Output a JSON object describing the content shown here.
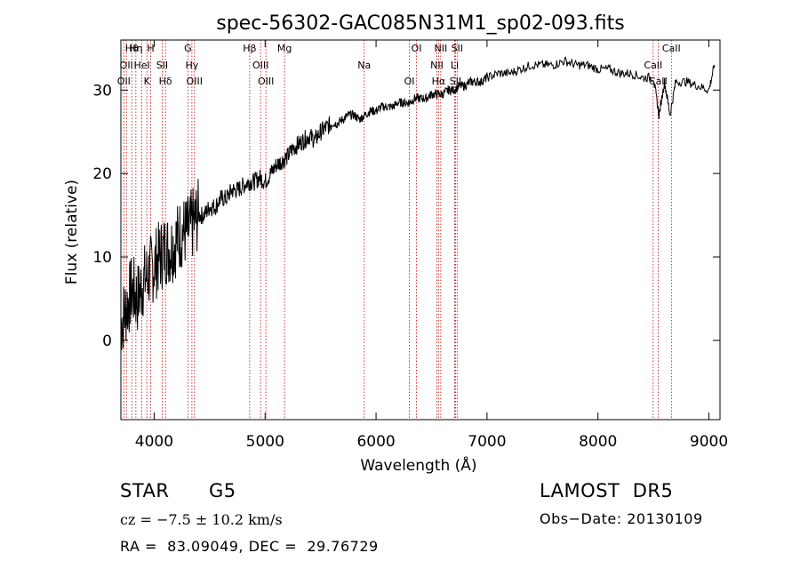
{
  "chart_data": {
    "type": "line",
    "title": "spec-56302-GAC085N31M1_sp02-093.fits",
    "xlabel": "Wavelength (Å)",
    "ylabel": "Flux (relative)",
    "xlim": [
      3700,
      9100
    ],
    "ylim": [
      -9.5,
      36
    ],
    "xticks": [
      4000,
      5000,
      6000,
      7000,
      8000,
      9000
    ],
    "yticks": [
      0,
      10,
      20,
      30
    ],
    "x_tick_labels": [
      "4000",
      "5000",
      "6000",
      "7000",
      "8000",
      "9000"
    ],
    "y_tick_labels": [
      "0",
      "10",
      "20",
      "30"
    ],
    "grid": false,
    "line_color": "#000000",
    "marker_color": "#cc0000",
    "series": [
      {
        "x": [
          3700,
          3750,
          3800,
          3850,
          3900,
          3950,
          4000,
          4050,
          4100,
          4150,
          4200,
          4250,
          4300,
          4350,
          4400,
          4450,
          4500,
          4550,
          4600,
          4650,
          4700,
          4750,
          4800,
          4850,
          4900,
          4950,
          5000,
          5050,
          5100,
          5150,
          5200,
          5250,
          5300,
          5350,
          5400,
          5450,
          5500,
          5550,
          5600,
          5650,
          5700,
          5750,
          5800,
          5850,
          5900,
          5950,
          6000,
          6050,
          6100,
          6150,
          6200,
          6250,
          6300,
          6350,
          6400,
          6450,
          6500,
          6550,
          6600,
          6650,
          6700,
          6750,
          6800,
          6850,
          6900,
          6950,
          7000,
          7100,
          7200,
          7300,
          7400,
          7500,
          7600,
          7700,
          7800,
          7900,
          8000,
          8100,
          8200,
          8300,
          8400,
          8500,
          8550,
          8600,
          8650,
          8700,
          8800,
          8900,
          9000,
          9050
        ],
        "values": [
          2,
          4,
          6,
          5,
          7,
          8,
          9,
          10,
          11,
          11,
          12,
          13,
          13,
          14,
          15,
          15,
          16,
          16,
          17,
          17,
          18,
          18,
          18.5,
          19,
          19,
          19.5,
          19,
          20,
          21,
          21.5,
          22,
          23,
          23.5,
          24,
          24.5,
          24,
          25,
          25.5,
          26,
          26,
          26.5,
          27,
          27,
          26.5,
          27,
          27.5,
          27.5,
          28,
          28,
          28,
          28.5,
          28.5,
          28.5,
          29,
          29,
          29,
          29.5,
          29.5,
          29.5,
          30,
          30,
          30.5,
          30.5,
          31,
          31,
          31,
          31.5,
          32,
          32,
          32.5,
          33,
          33,
          33,
          33.5,
          33,
          33,
          32.5,
          32.5,
          32,
          32,
          31.5,
          31.5,
          27,
          31,
          27,
          31,
          31,
          30.5,
          30,
          33
        ]
      }
    ],
    "line_markers": [
      {
        "wl": 3798,
        "label": "Hθ"
      },
      {
        "wl": 3750,
        "label": "OII"
      },
      {
        "wl": 3727,
        "label": "OII"
      },
      {
        "wl": 3835,
        "label": "Hη"
      },
      {
        "wl": 3889,
        "label": "HeI"
      },
      {
        "wl": 3934,
        "label": "K"
      },
      {
        "wl": 3969,
        "label": "H"
      },
      {
        "wl": 4072,
        "label": "SII"
      },
      {
        "wl": 4102,
        "label": "Hδ"
      },
      {
        "wl": 4304,
        "label": "G"
      },
      {
        "wl": 4340,
        "label": "Hγ"
      },
      {
        "wl": 4363,
        "label": "OIII"
      },
      {
        "wl": 4861,
        "label": "Hβ"
      },
      {
        "wl": 4959,
        "label": "OIII"
      },
      {
        "wl": 5007,
        "label": "OIII"
      },
      {
        "wl": 5175,
        "label": "Mg"
      },
      {
        "wl": 5893,
        "label": "Na"
      },
      {
        "wl": 6300,
        "label": "OI"
      },
      {
        "wl": 6364,
        "label": "OI"
      },
      {
        "wl": 6548,
        "label": "NII"
      },
      {
        "wl": 6563,
        "label": "Hα"
      },
      {
        "wl": 6583,
        "label": "NII"
      },
      {
        "wl": 6708,
        "label": "Li"
      },
      {
        "wl": 6716,
        "label": "SII"
      },
      {
        "wl": 6731,
        "label": "SII"
      },
      {
        "wl": 8498,
        "label": "CaII"
      },
      {
        "wl": 8542,
        "label": "CaII"
      },
      {
        "wl": 8662,
        "label": "CaII"
      }
    ]
  },
  "footer": {
    "class_label": "STAR",
    "subclass": "G5",
    "survey": "LAMOST  DR5",
    "cz": "cz = −7.5 ± 10.2 km/s",
    "obs_date": "Obs−Date: 20130109",
    "coords": "RA =  83.09049, DEC =  29.76729"
  }
}
